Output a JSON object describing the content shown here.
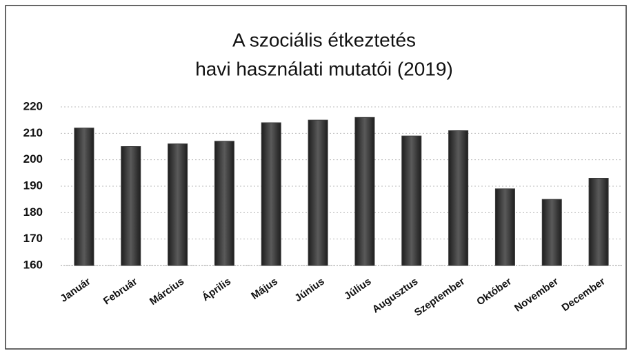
{
  "chart_data": {
    "type": "bar",
    "title": [
      "A szociális étkeztetés",
      "havi használati mutatói (2019)"
    ],
    "categories": [
      "Január",
      "Február",
      "Március",
      "Április",
      "Május",
      "Június",
      "Július",
      "Augusztus",
      "Szeptember",
      "Október",
      "November",
      "December"
    ],
    "values": [
      212,
      205,
      206,
      207,
      214,
      215,
      216,
      209,
      211,
      189,
      185,
      193
    ],
    "color": "#3a3a3a",
    "ylim": [
      160,
      220
    ],
    "yticks": [
      160,
      170,
      180,
      190,
      200,
      210,
      220
    ],
    "grid": true
  }
}
